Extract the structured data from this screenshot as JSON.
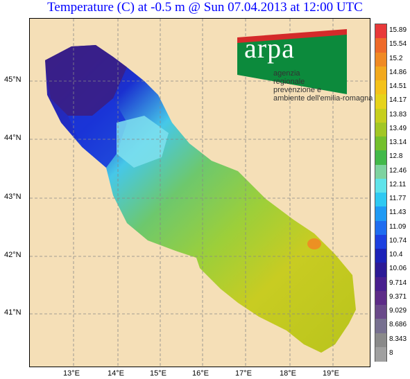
{
  "title": "Temperature (C) at -0.5 m @ Sun 07.04.2013 at 12:00 UTC",
  "lat_labels": [
    "45°N",
    "44°N",
    "43°N",
    "42°N",
    "41°N"
  ],
  "lon_labels": [
    "13°E",
    "14°E",
    "15°E",
    "16°E",
    "17°E",
    "18°E",
    "19°E"
  ],
  "colorbar": {
    "labels": [
      "15.89",
      "15.54",
      "15.2",
      "14.86",
      "14.51",
      "14.17",
      "13.83",
      "13.49",
      "13.14",
      "12.8",
      "12.46",
      "12.11",
      "11.77",
      "11.43",
      "11.09",
      "10.74",
      "10.4",
      "10.06",
      "9.714",
      "9.371",
      "9.029",
      "8.686",
      "8.343",
      "8"
    ],
    "colors": [
      "#e8393a",
      "#ee6a2a",
      "#f08a24",
      "#f2a91e",
      "#f4c21a",
      "#e6d31b",
      "#c6cf1e",
      "#a2c724",
      "#73c02d",
      "#42b94a",
      "#7ed3a0",
      "#5fe3ea",
      "#2ec9f2",
      "#1f9af4",
      "#1f6df0",
      "#1d40e0",
      "#1b22b8",
      "#2c1a96",
      "#481f8e",
      "#5d2c88",
      "#6a4a8a",
      "#777090",
      "#8a8a8a",
      "#a0a0a0"
    ]
  },
  "logo": {
    "word": "arpa",
    "lines": [
      "agenzia",
      "regionale",
      "prevenzione e",
      "ambiente dell'emilia-romagna"
    ],
    "colors": {
      "green": "#0c8a3c",
      "red": "#d42a2a"
    }
  },
  "map_colors": {
    "land": "#f5dfb7",
    "grid": "#888888"
  }
}
